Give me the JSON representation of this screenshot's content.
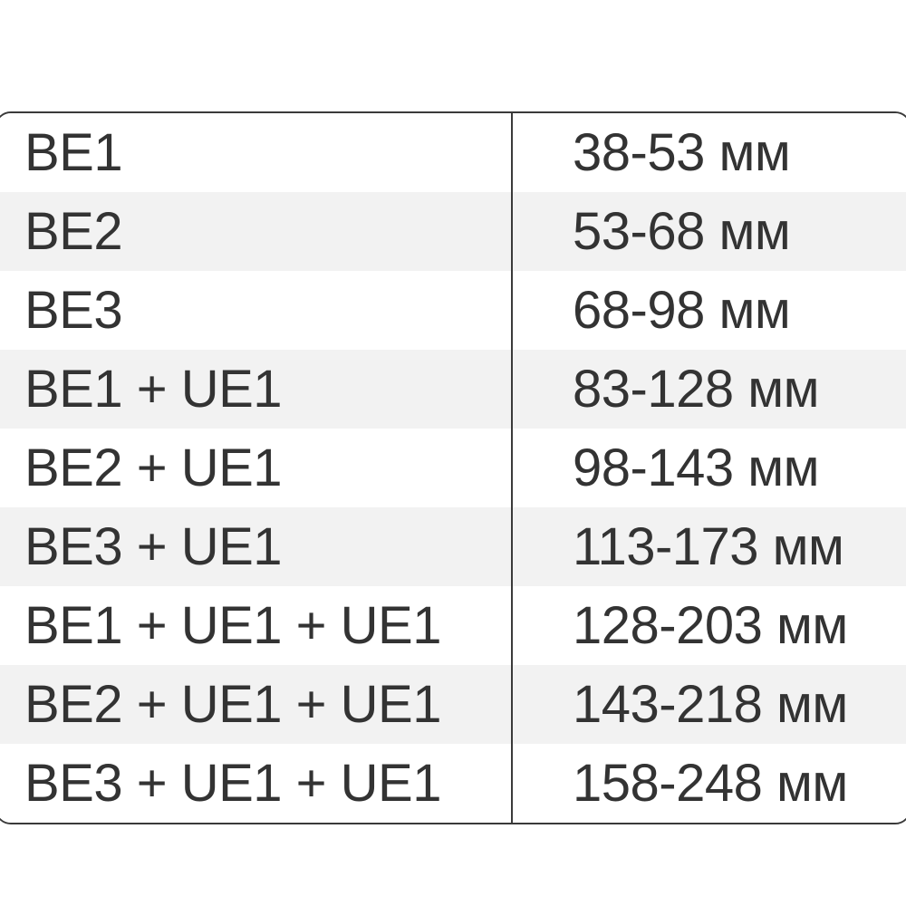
{
  "table": {
    "rows": [
      {
        "config": "BE1",
        "range": "38-53 мм"
      },
      {
        "config": "BE2",
        "range": "53-68 мм"
      },
      {
        "config": "BE3",
        "range": "68-98 мм"
      },
      {
        "config": "BE1 + UE1",
        "range": "83-128 мм"
      },
      {
        "config": "BE2 + UE1",
        "range": "98-143 мм"
      },
      {
        "config": "BE3 + UE1",
        "range": "113-173 мм"
      },
      {
        "config": "BE1 + UE1 + UE1",
        "range": "128-203 мм"
      },
      {
        "config": "BE2 + UE1 + UE1",
        "range": "143-218 мм"
      },
      {
        "config": "BE3 + UE1 + UE1",
        "range": "158-248 мм"
      }
    ]
  },
  "colors": {
    "stripe": "#f2f2f2",
    "border": "#3a3a3a",
    "text": "#333333"
  }
}
